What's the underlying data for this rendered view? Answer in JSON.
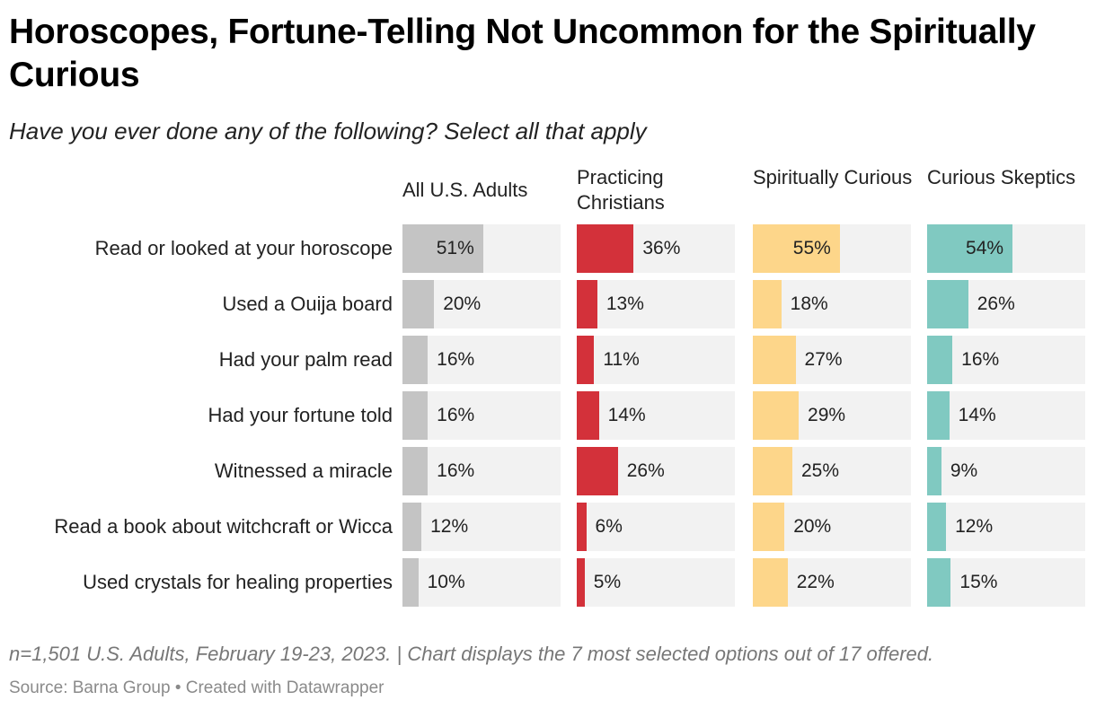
{
  "title": "Horoscopes, Fortune-Telling Not Uncommon for the Spiritually Curious",
  "subtitle": "Have you ever done any of the following? Select all that apply",
  "notes": "n=1,501 U.S. Adults, February 19-23, 2023. | Chart displays the 7 most selected options out of 17 offered.",
  "source": "Source: Barna Group • Created with Datawrapper",
  "chart_data": {
    "type": "bar",
    "orientation": "horizontal",
    "layout": "small-multiples",
    "categories": [
      "Read or looked at your horoscope",
      "Used a Ouija board",
      "Had your palm read",
      "Had your fortune told",
      "Witnessed a miracle",
      "Read a book about witchcraft or Wicca",
      "Used crystals for healing properties"
    ],
    "xlim": [
      0,
      100
    ],
    "unit": "%",
    "series": [
      {
        "name": "All U.S. Adults",
        "color": "#c4c4c4",
        "values": [
          51,
          20,
          16,
          16,
          16,
          12,
          10
        ]
      },
      {
        "name": "Practicing Christians",
        "color": "#d3313a",
        "values": [
          36,
          13,
          11,
          14,
          26,
          6,
          5
        ]
      },
      {
        "name": "Spiritually Curious",
        "color": "#fdd68a",
        "values": [
          55,
          18,
          27,
          29,
          25,
          20,
          22
        ]
      },
      {
        "name": "Curious Skeptics",
        "color": "#80c9c1",
        "values": [
          54,
          26,
          16,
          14,
          9,
          12,
          15
        ]
      }
    ]
  }
}
